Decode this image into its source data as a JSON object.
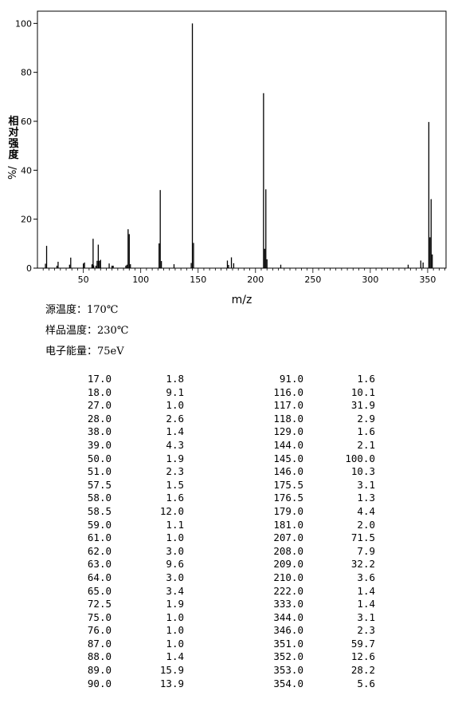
{
  "chart_data": {
    "type": "bar",
    "xlabel": "m/z",
    "ylabel": "相对强度",
    "ylabel_unit": "%",
    "xlim": [
      10,
      366
    ],
    "ylim": [
      0,
      105
    ],
    "xticks": [
      50,
      100,
      150,
      200,
      250,
      300,
      350
    ],
    "yticks": [
      0,
      20,
      40,
      60,
      80,
      100
    ],
    "grid": false,
    "x": [
      17.0,
      18.0,
      27.0,
      28.0,
      38.0,
      39.0,
      50.0,
      51.0,
      57.5,
      58.0,
      58.5,
      59.0,
      61.0,
      62.0,
      63.0,
      64.0,
      65.0,
      72.5,
      75.0,
      76.0,
      87.0,
      88.0,
      89.0,
      90.0,
      91.0,
      116.0,
      117.0,
      118.0,
      129.0,
      144.0,
      145.0,
      146.0,
      175.5,
      176.5,
      179.0,
      181.0,
      207.0,
      208.0,
      209.0,
      210.0,
      222.0,
      333.0,
      344.0,
      346.0,
      351.0,
      352.0,
      353.0,
      354.0
    ],
    "values": [
      1.8,
      9.1,
      1.0,
      2.6,
      1.4,
      4.3,
      1.9,
      2.3,
      1.5,
      1.6,
      12.0,
      1.1,
      1.0,
      3.0,
      9.6,
      3.0,
      3.4,
      1.9,
      1.0,
      1.0,
      1.0,
      1.4,
      15.9,
      13.9,
      1.6,
      10.1,
      31.9,
      2.9,
      1.6,
      2.1,
      100.0,
      10.3,
      3.1,
      1.3,
      4.4,
      2.0,
      71.5,
      7.9,
      32.2,
      3.6,
      1.4,
      1.4,
      3.1,
      2.3,
      59.7,
      12.6,
      28.2,
      5.6
    ]
  },
  "conditions": {
    "source_temp": "源温度：170℃",
    "sample_temp": "样品温度：230℃",
    "electron_energy": "电子能量：75eV"
  },
  "peak_table": [
    [
      "17.0",
      "1.8",
      "91.0",
      "1.6"
    ],
    [
      "18.0",
      "9.1",
      "116.0",
      "10.1"
    ],
    [
      "27.0",
      "1.0",
      "117.0",
      "31.9"
    ],
    [
      "28.0",
      "2.6",
      "118.0",
      "2.9"
    ],
    [
      "38.0",
      "1.4",
      "129.0",
      "1.6"
    ],
    [
      "39.0",
      "4.3",
      "144.0",
      "2.1"
    ],
    [
      "50.0",
      "1.9",
      "145.0",
      "100.0"
    ],
    [
      "51.0",
      "2.3",
      "146.0",
      "10.3"
    ],
    [
      "57.5",
      "1.5",
      "175.5",
      "3.1"
    ],
    [
      "58.0",
      "1.6",
      "176.5",
      "1.3"
    ],
    [
      "58.5",
      "12.0",
      "179.0",
      "4.4"
    ],
    [
      "59.0",
      "1.1",
      "181.0",
      "2.0"
    ],
    [
      "61.0",
      "1.0",
      "207.0",
      "71.5"
    ],
    [
      "62.0",
      "3.0",
      "208.0",
      "7.9"
    ],
    [
      "63.0",
      "9.6",
      "209.0",
      "32.2"
    ],
    [
      "64.0",
      "3.0",
      "210.0",
      "3.6"
    ],
    [
      "65.0",
      "3.4",
      "222.0",
      "1.4"
    ],
    [
      "72.5",
      "1.9",
      "333.0",
      "1.4"
    ],
    [
      "75.0",
      "1.0",
      "344.0",
      "3.1"
    ],
    [
      "76.0",
      "1.0",
      "346.0",
      "2.3"
    ],
    [
      "87.0",
      "1.0",
      "351.0",
      "59.7"
    ],
    [
      "88.0",
      "1.4",
      "352.0",
      "12.6"
    ],
    [
      "89.0",
      "15.9",
      "353.0",
      "28.2"
    ],
    [
      "90.0",
      "13.9",
      "354.0",
      "5.6"
    ]
  ]
}
